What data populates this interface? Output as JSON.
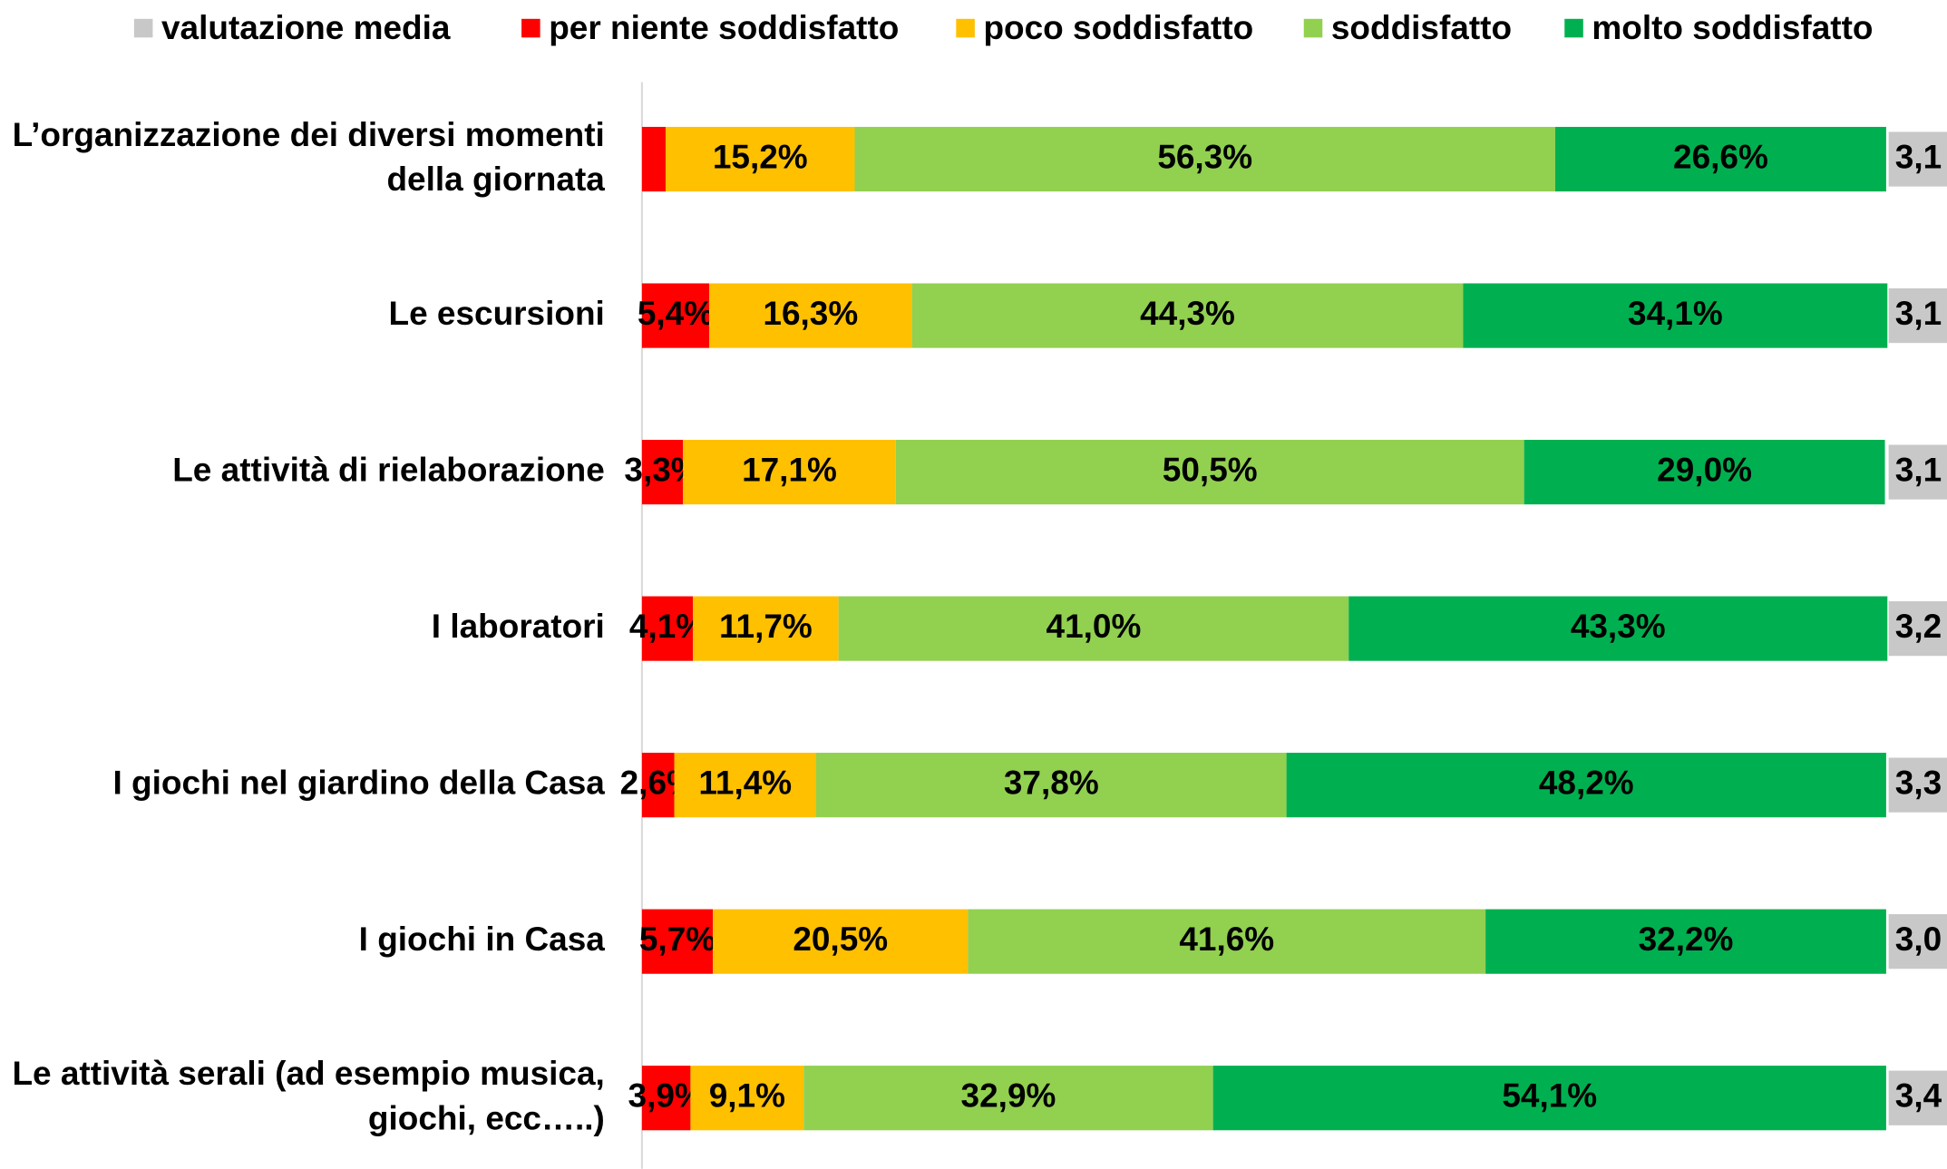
{
  "chart_data": {
    "type": "stacked_bar_horizontal",
    "categories": [
      "L’organizzazione dei diversi momenti della giornata",
      "Le escursioni",
      "Le attività di rielaborazione",
      "I laboratori",
      "I giochi nel giardino della Casa",
      "I giochi in Casa",
      "Le attività serali (ad esempio musica, giochi, ecc…..)"
    ],
    "xlim": [
      0,
      100
    ],
    "average": {
      "name": "valutazione media",
      "color": "#c8c8c8",
      "values": [
        3.1,
        3.1,
        3.1,
        3.2,
        3.3,
        3.0,
        3.4
      ],
      "value_labels": [
        "3,1",
        "3,1",
        "3,1",
        "3,2",
        "3,3",
        "3,0",
        "3,4"
      ]
    },
    "series": [
      {
        "name": "per niente soddisfatto",
        "color": "#ff0000",
        "values": [
          1.9,
          5.4,
          3.3,
          4.1,
          2.6,
          5.7,
          3.9
        ],
        "value_labels": [
          null,
          "5,4%",
          "3,3%",
          "4,1%",
          "2,6%",
          "5,7%",
          "3,9%"
        ]
      },
      {
        "name": "poco soddisfatto",
        "color": "#ffc000",
        "values": [
          15.2,
          16.3,
          17.1,
          11.7,
          11.4,
          20.5,
          9.1
        ],
        "value_labels": [
          "15,2%",
          "16,3%",
          "17,1%",
          "11,7%",
          "11,4%",
          "20,5%",
          "9,1%"
        ]
      },
      {
        "name": "soddisfatto",
        "color": "#92d050",
        "values": [
          56.3,
          44.3,
          50.5,
          41.0,
          37.8,
          41.6,
          32.9
        ],
        "value_labels": [
          "56,3%",
          "44,3%",
          "50,5%",
          "41,0%",
          "37,8%",
          "41,6%",
          "32,9%"
        ]
      },
      {
        "name": "molto soddisfatto",
        "color": "#00b050",
        "values": [
          26.6,
          34.1,
          29.0,
          43.3,
          48.2,
          32.2,
          54.1
        ],
        "value_labels": [
          "26,6%",
          "34,1%",
          "29,0%",
          "43,3%",
          "48,2%",
          "32,2%",
          "54,1%"
        ]
      }
    ]
  }
}
